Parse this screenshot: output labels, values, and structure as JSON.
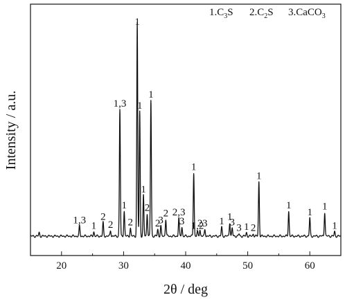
{
  "chart_data": {
    "type": "line",
    "xlabel": "2θ / deg",
    "ylabel": "Intensity / a.u.",
    "xlim": [
      15,
      65
    ],
    "ylim": [
      0,
      100
    ],
    "x_ticks": [
      20,
      30,
      40,
      50,
      60
    ],
    "grid": false,
    "legend_position": "top-right",
    "legend": [
      {
        "id": "1",
        "label": "1.C",
        "sub": "3",
        "tail": "S"
      },
      {
        "id": "2",
        "label": "2.C",
        "sub": "2",
        "tail": "S"
      },
      {
        "id": "3",
        "label": "3.CaCO",
        "sub": "3",
        "tail": ""
      }
    ],
    "baseline": 4,
    "series": [
      {
        "peaks": [
          {
            "x": 16.4,
            "y": 5.5
          },
          {
            "x": 22.9,
            "y": 8.5,
            "label": "1,3"
          },
          {
            "x": 25.2,
            "y": 6.0,
            "label": "1"
          },
          {
            "x": 26.7,
            "y": 10.0,
            "label": "2"
          },
          {
            "x": 27.9,
            "y": 6.5,
            "label": "2"
          },
          {
            "x": 29.4,
            "y": 60.0,
            "label": "1,3"
          },
          {
            "x": 30.1,
            "y": 15.0,
            "label": "1"
          },
          {
            "x": 31.1,
            "y": 7.5,
            "label": "2"
          },
          {
            "x": 32.2,
            "y": 98.0,
            "label": "1"
          },
          {
            "x": 32.6,
            "y": 59.0,
            "label": "1"
          },
          {
            "x": 33.2,
            "y": 22.0,
            "label": "1"
          },
          {
            "x": 33.8,
            "y": 14.0,
            "label": "2"
          },
          {
            "x": 34.4,
            "y": 64.0,
            "label": "1"
          },
          {
            "x": 35.5,
            "y": 7.0,
            "label": "2"
          },
          {
            "x": 36.0,
            "y": 8.5,
            "label": "3"
          },
          {
            "x": 36.8,
            "y": 11.5,
            "label": "2"
          },
          {
            "x": 38.9,
            "y": 12.0,
            "label": "2,3"
          },
          {
            "x": 39.4,
            "y": 8.0,
            "label": "3"
          },
          {
            "x": 41.3,
            "y": 32.0,
            "label": "1"
          },
          {
            "x": 41.9,
            "y": 6.0,
            "label": "1,2"
          },
          {
            "x": 42.3,
            "y": 7.0,
            "label": "2"
          },
          {
            "x": 43.1,
            "y": 7.0,
            "label": "3"
          },
          {
            "x": 45.8,
            "y": 8.0,
            "label": "1"
          },
          {
            "x": 47.1,
            "y": 10.0,
            "label": "1"
          },
          {
            "x": 47.5,
            "y": 7.5,
            "label": "3"
          },
          {
            "x": 48.6,
            "y": 5.0,
            "label": "3"
          },
          {
            "x": 49.8,
            "y": 5.5,
            "label": "1"
          },
          {
            "x": 50.9,
            "y": 5.0,
            "label": "2"
          },
          {
            "x": 51.8,
            "y": 28.0,
            "label": "1"
          },
          {
            "x": 56.6,
            "y": 15.0,
            "label": "1"
          },
          {
            "x": 60.0,
            "y": 12.0,
            "label": "1"
          },
          {
            "x": 62.4,
            "y": 14.5,
            "label": "1"
          },
          {
            "x": 64.0,
            "y": 6.0,
            "label": "1"
          }
        ]
      }
    ]
  }
}
